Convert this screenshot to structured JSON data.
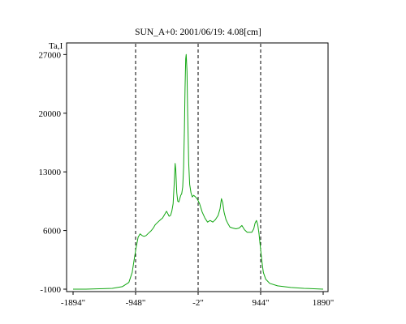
{
  "chart_data": {
    "type": "line",
    "title": "SUN_A+0: 2001/06/19: 4.08[cm]",
    "ylabel": "Ta,I",
    "xlabel": "",
    "xlim": [
      -1894,
      1890
    ],
    "ylim": [
      -1000,
      28000
    ],
    "x_ticks": [
      -1894,
      -948,
      -2,
      944,
      1890
    ],
    "x_tick_labels": [
      "-1894\"",
      "-948\"",
      "-2\"",
      "944\"",
      "1890\""
    ],
    "y_ticks": [
      -1000,
      6000,
      13000,
      20000,
      27000
    ],
    "y_tick_labels": [
      "-1000",
      "6000",
      "13000",
      "20000",
      "27000"
    ],
    "vlines": [
      -948,
      -2,
      944
    ],
    "grid": false,
    "series": [
      {
        "color": "#11a611",
        "points": [
          [
            -1894,
            -1000
          ],
          [
            -1700,
            -1000
          ],
          [
            -1500,
            -950
          ],
          [
            -1300,
            -900
          ],
          [
            -1150,
            -700
          ],
          [
            -1050,
            -200
          ],
          [
            -1000,
            1000
          ],
          [
            -970,
            2500
          ],
          [
            -940,
            4000
          ],
          [
            -910,
            5200
          ],
          [
            -880,
            5600
          ],
          [
            -850,
            5400
          ],
          [
            -820,
            5300
          ],
          [
            -790,
            5400
          ],
          [
            -750,
            5700
          ],
          [
            -710,
            6000
          ],
          [
            -680,
            6300
          ],
          [
            -650,
            6700
          ],
          [
            -610,
            7000
          ],
          [
            -570,
            7300
          ],
          [
            -540,
            7500
          ],
          [
            -510,
            7900
          ],
          [
            -480,
            8300
          ],
          [
            -460,
            8000
          ],
          [
            -440,
            7700
          ],
          [
            -420,
            7800
          ],
          [
            -400,
            8300
          ],
          [
            -380,
            9200
          ],
          [
            -365,
            11500
          ],
          [
            -350,
            14000
          ],
          [
            -340,
            13200
          ],
          [
            -325,
            10500
          ],
          [
            -310,
            9500
          ],
          [
            -295,
            9400
          ],
          [
            -280,
            9800
          ],
          [
            -265,
            10200
          ],
          [
            -250,
            10400
          ],
          [
            -235,
            11200
          ],
          [
            -222,
            13500
          ],
          [
            -210,
            18000
          ],
          [
            -200,
            23000
          ],
          [
            -190,
            26500
          ],
          [
            -182,
            27000
          ],
          [
            -170,
            25000
          ],
          [
            -160,
            20000
          ],
          [
            -145,
            14000
          ],
          [
            -130,
            11500
          ],
          [
            -110,
            10500
          ],
          [
            -90,
            10000
          ],
          [
            -70,
            10200
          ],
          [
            -40,
            10000
          ],
          [
            -10,
            9700
          ],
          [
            20,
            9200
          ],
          [
            60,
            8200
          ],
          [
            100,
            7500
          ],
          [
            140,
            7000
          ],
          [
            180,
            7200
          ],
          [
            220,
            7000
          ],
          [
            260,
            7300
          ],
          [
            300,
            7800
          ],
          [
            330,
            8600
          ],
          [
            350,
            9800
          ],
          [
            370,
            9300
          ],
          [
            390,
            8200
          ],
          [
            420,
            7300
          ],
          [
            450,
            6800
          ],
          [
            480,
            6400
          ],
          [
            520,
            6300
          ],
          [
            570,
            6200
          ],
          [
            620,
            6300
          ],
          [
            660,
            6600
          ],
          [
            700,
            6100
          ],
          [
            740,
            5800
          ],
          [
            780,
            5800
          ],
          [
            810,
            5800
          ],
          [
            840,
            6200
          ],
          [
            860,
            6900
          ],
          [
            880,
            7200
          ],
          [
            900,
            6700
          ],
          [
            920,
            5600
          ],
          [
            940,
            4000
          ],
          [
            960,
            2500
          ],
          [
            985,
            1000
          ],
          [
            1020,
            200
          ],
          [
            1080,
            -300
          ],
          [
            1200,
            -600
          ],
          [
            1400,
            -800
          ],
          [
            1600,
            -900
          ],
          [
            1750,
            -950
          ],
          [
            1890,
            -1000
          ]
        ]
      }
    ]
  }
}
